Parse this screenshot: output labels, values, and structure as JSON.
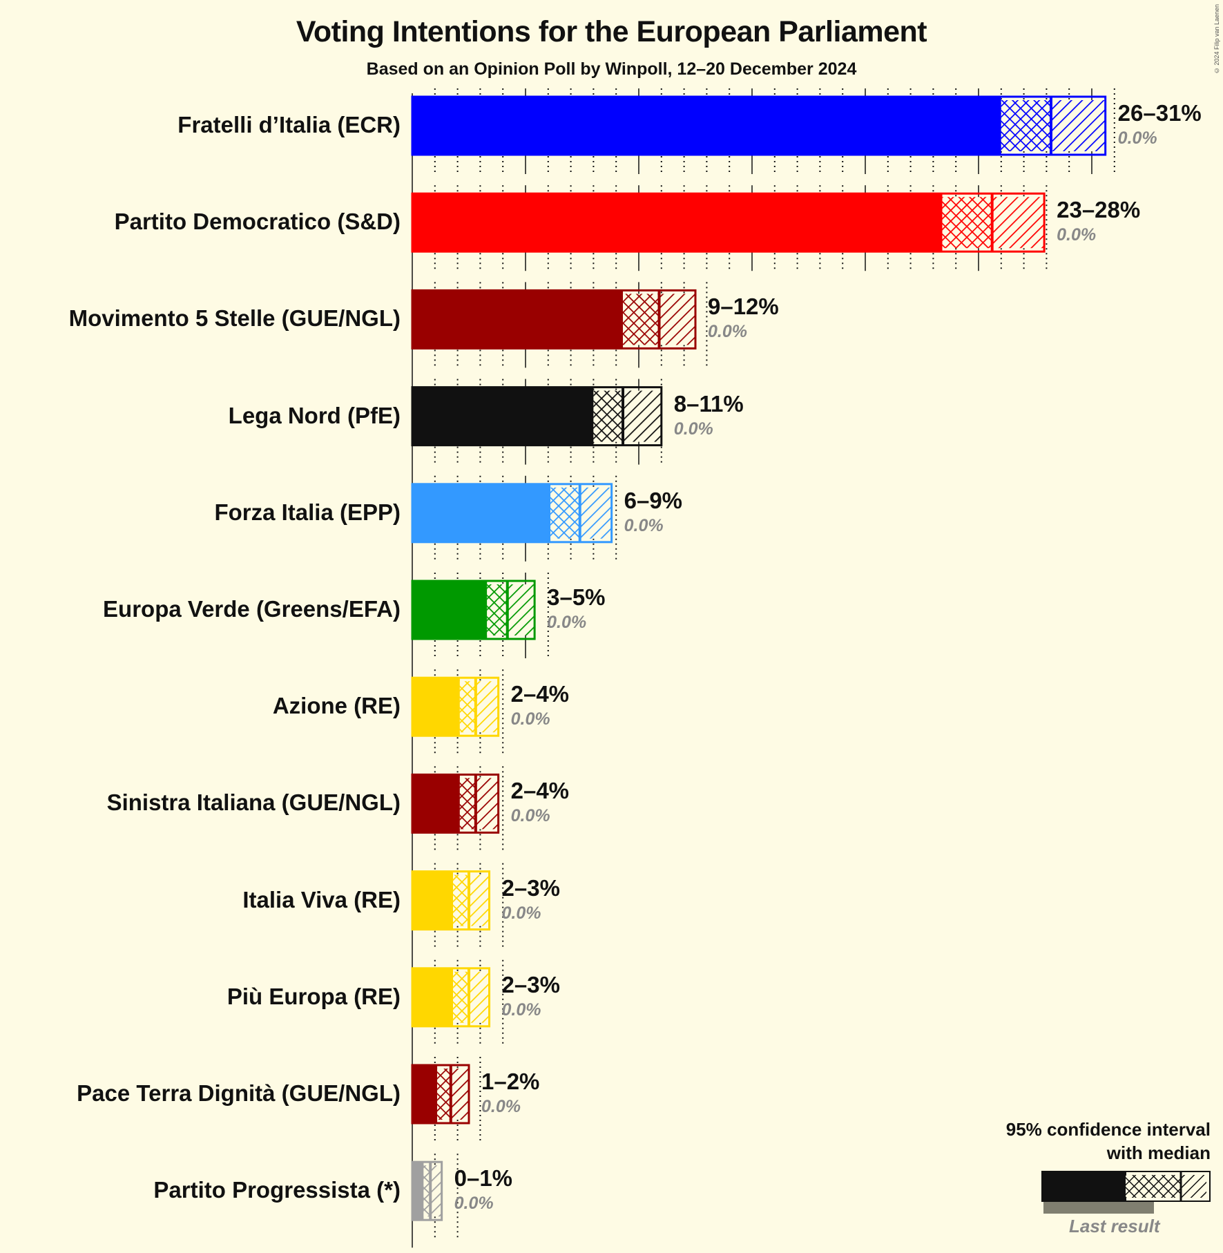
{
  "header": {
    "title": "Voting Intentions for the European Parliament",
    "subtitle": "Based on an Opinion Poll by Winpoll, 12–20 December 2024",
    "copyright": "© 2024 Filip van Laenen"
  },
  "legend": {
    "line1": "95% confidence interval",
    "line2": "with median",
    "last_result": "Last result"
  },
  "chart_data": {
    "type": "bar",
    "orientation": "horizontal",
    "title": "Voting Intentions for the European Parliament",
    "subtitle": "Based on an Opinion Poll by Winpoll, 12–20 December 2024",
    "xlabel": "",
    "ylabel": "",
    "xlim": [
      0,
      31
    ],
    "grid": {
      "major_every": 5,
      "minor_every": 1
    },
    "legend_position": "bottom-right",
    "categories": [
      "Fratelli d’Italia (ECR)",
      "Partito Democratico (S&D)",
      "Movimento 5 Stelle (GUE/NGL)",
      "Lega Nord (PfE)",
      "Forza Italia (EPP)",
      "Europa Verde (Greens/EFA)",
      "Azione (RE)",
      "Sinistra Italiana (GUE/NGL)",
      "Italia Viva (RE)",
      "Più Europa (RE)",
      "Pace Terra Dignità (GUE/NGL)",
      "Partito Progressista (*)"
    ],
    "series": [
      {
        "name": "CI lower",
        "values": [
          26.0,
          23.4,
          9.3,
          8.0,
          6.1,
          3.3,
          2.1,
          2.1,
          1.8,
          1.8,
          1.1,
          0.5
        ]
      },
      {
        "name": "Median",
        "values": [
          28.2,
          25.6,
          10.9,
          9.3,
          7.4,
          4.2,
          2.8,
          2.8,
          2.5,
          2.5,
          1.7,
          0.8
        ]
      },
      {
        "name": "CI upper",
        "values": [
          30.6,
          27.9,
          12.5,
          11.0,
          8.8,
          5.4,
          3.8,
          3.8,
          3.4,
          3.4,
          2.5,
          1.3
        ]
      },
      {
        "name": "Last result",
        "values": [
          0.0,
          0.0,
          0.0,
          0.0,
          0.0,
          0.0,
          0.0,
          0.0,
          0.0,
          0.0,
          0.0,
          0.0
        ]
      }
    ],
    "range_labels": [
      "26–31%",
      "23–28%",
      "9–12%",
      "8–11%",
      "6–9%",
      "3–5%",
      "2–4%",
      "2–4%",
      "2–3%",
      "2–3%",
      "1–2%",
      "0–1%"
    ],
    "last_result_labels": [
      "0.0%",
      "0.0%",
      "0.0%",
      "0.0%",
      "0.0%",
      "0.0%",
      "0.0%",
      "0.0%",
      "0.0%",
      "0.0%",
      "0.0%",
      "0.0%"
    ],
    "colors": [
      "#0000FF",
      "#FF0000",
      "#990000",
      "#111111",
      "#3399FF",
      "#009900",
      "#FFD700",
      "#990000",
      "#FFD700",
      "#FFD700",
      "#990000",
      "#A0A0A0"
    ]
  }
}
